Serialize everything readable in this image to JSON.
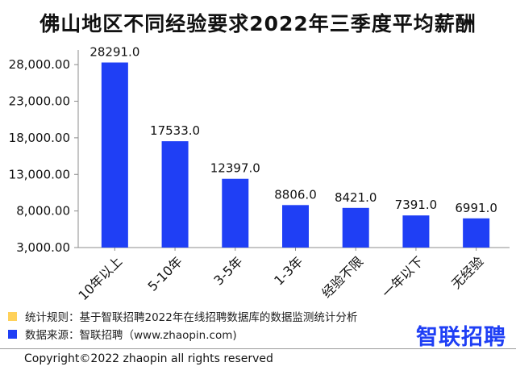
{
  "chart_data": {
    "type": "bar",
    "title": "佛山地区不同经验要求2022年三季度平均薪酬",
    "categories": [
      "10年以上",
      "5-10年",
      "3-5年",
      "1-3年",
      "经验不限",
      "一年以下",
      "无经验"
    ],
    "values": [
      28291.0,
      17533.0,
      12397.0,
      8806.0,
      8421.0,
      7391.0,
      6991.0
    ],
    "value_labels": [
      "28291.0",
      "17533.0",
      "12397.0",
      "8806.0",
      "8421.0",
      "7391.0",
      "6991.0"
    ],
    "ylim": [
      3000,
      30000
    ],
    "yticks": [
      3000,
      8000,
      13000,
      18000,
      23000,
      28000
    ],
    "ytick_labels": [
      "3,000.00",
      "8,000.00",
      "13,000.00",
      "18,000.00",
      "23,000.00",
      "28,000.00"
    ],
    "xlabel": "",
    "ylabel": "",
    "grid": false,
    "legend": "none",
    "bar_color": "#1f3ff5"
  },
  "footer": {
    "rule_text": "统计规则：基于智联招聘2022年在线招聘数据库的数据监测统计分析",
    "source_text": "数据来源：智联招聘（www.zhaopin.com)",
    "rule_color": "#ffd15a",
    "source_color": "#1f3ff5",
    "logo_text": "智联招聘",
    "logo_color": "#1f3ff5",
    "copyright": "Copyright©2022 zhaopin all rights reserved"
  }
}
